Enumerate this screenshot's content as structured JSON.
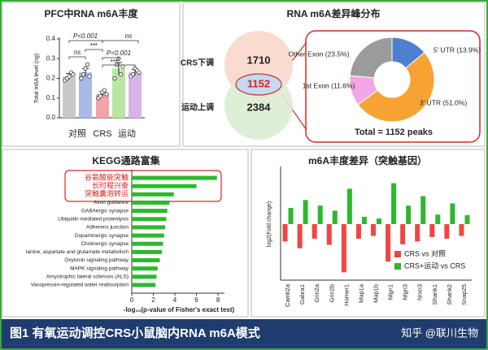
{
  "chart_data": [
    {
      "type": "bar",
      "title": "PFC中RNA m6A丰度",
      "y_label": "Total m6A level (ng)",
      "ylim": [
        0,
        0.4
      ],
      "yticks": [
        {
          "value": 0,
          "label": "0.0"
        },
        {
          "value": 0.1,
          "label": "0.1"
        },
        {
          "value": 0.2,
          "label": "0.2"
        },
        {
          "value": 0.3,
          "label": "0.3"
        },
        {
          "value": 0.4,
          "label": "0.4"
        }
      ],
      "groups": [
        {
          "label": "对照",
          "bars": [
            {
              "color": "#c9c9c9",
              "value": 0.21,
              "error": 0.015,
              "points": [
                0.19,
                0.2,
                0.21,
                0.23,
                0.22
              ]
            },
            {
              "color": "#a9b9ea",
              "value": 0.23,
              "error": 0.02,
              "points": [
                0.2,
                0.22,
                0.25,
                0.27,
                0.21
              ]
            }
          ]
        },
        {
          "label": "CRS",
          "bars": [
            {
              "color": "#f4a2a8",
              "value": 0.12,
              "error": 0.012,
              "points": [
                0.1,
                0.11,
                0.13,
                0.14,
                0.12
              ]
            }
          ]
        },
        {
          "label": "运动",
          "bars": [
            {
              "color": "#b9e6a2",
              "value": 0.25,
              "error": 0.03,
              "points": [
                0.2,
                0.27,
                0.3,
                0.22,
                0.26
              ]
            },
            {
              "color": "#d9b2ea",
              "value": 0.23,
              "error": 0.015,
              "points": [
                0.21,
                0.22,
                0.25,
                0.24,
                0.23
              ]
            }
          ]
        }
      ],
      "annotations": [
        "P<0.001",
        "ns",
        "***",
        "ns",
        "P<0.001",
        "***"
      ]
    },
    {
      "type": "venn",
      "title": "RNA m6A差异峰分布",
      "sets": [
        {
          "label": "CRS下调",
          "value": 1710,
          "color": "#f9dccf"
        },
        {
          "label": "运动上调",
          "value": 2384,
          "color": "#dcecd2"
        }
      ],
      "overlap": {
        "value": 1152,
        "color": "#c5d9f1"
      }
    },
    {
      "type": "pie",
      "values": [
        13.9,
        51.0,
        11.6,
        23.5
      ],
      "value_labels": [
        "5' UTR (13.9%)",
        "3' UTR (51.0%)",
        "1st Exon (11.6%)",
        "Other Exon (23.5%)"
      ],
      "colors": [
        "#4f7fcf",
        "#f7a334",
        "#f2a6e6",
        "#9b9b9b"
      ],
      "total_label": "Total = 1152 peaks"
    },
    {
      "type": "barh",
      "title": "KEGG通路富集",
      "categories": [
        "谷氨酸能突触",
        "长时程兴奋",
        "突触囊泡转运",
        "Axon guidance",
        "GABAergic synapse",
        "Ubiquitin mediated proteolysis",
        "Adherens junction",
        "Dopaminergic synapse",
        "Cholinergic synapse",
        "lanine, aspartate and glutamate metabolism",
        "Oxytocin signaling pathway",
        "MAPK signaling pathway",
        "Amyotrophic lateral sclerosis (ALS)",
        "Vasopressin-regulated water reabsorption"
      ],
      "values": [
        7.9,
        6.0,
        3.9,
        3.5,
        3.3,
        3.2,
        3.1,
        3.0,
        2.9,
        2.8,
        2.6,
        2.4,
        2.3,
        2.2
      ],
      "label_colors": [
        "#e02020",
        "#e02020",
        "#e02020",
        "#222222",
        "#222222",
        "#222222",
        "#222222",
        "#222222",
        "#222222",
        "#222222",
        "#222222",
        "#222222",
        "#222222",
        "#222222"
      ],
      "color": "#2db82d",
      "xlim": [
        0,
        8.6
      ],
      "xticks": [
        0,
        2,
        4,
        6,
        8
      ],
      "x_label": "-log₁₀(p-value of Fisher's exact test)"
    },
    {
      "type": "bar",
      "title": "m6A丰度差异（突触基因）",
      "y_label": "log2(Fold change)",
      "categories": [
        "Camk2a",
        "Gabra1",
        "Grin2a",
        "Grin2b",
        "Homer1",
        "Map1a",
        "Map1b",
        "Nlgn1",
        "Nlgn3",
        "Nrxn3",
        "Shank1",
        "Shank2",
        "Snap25"
      ],
      "ylim": [
        -1,
        1
      ],
      "legend": "lower right",
      "series": [
        {
          "name": "CRS vs 对照",
          "color": "#f04545",
          "values": [
            -0.31,
            -0.43,
            -0.26,
            -0.37,
            -0.86,
            -0.26,
            -0.21,
            -0.67,
            -0.36,
            -0.31,
            -0.23,
            -0.26,
            -0.21
          ]
        },
        {
          "name": "CRS+运动 vs CRS",
          "color": "#2eb82e",
          "values": [
            0.29,
            0.43,
            0.33,
            0.24,
            0.63,
            0.13,
            0.1,
            0.73,
            0.33,
            0.5,
            0.17,
            0.37,
            0.16
          ]
        }
      ]
    }
  ],
  "caption": "图1 有氧运动调控CRS小鼠脑内RNA m6A模式",
  "watermark": "知乎 @联川生物"
}
